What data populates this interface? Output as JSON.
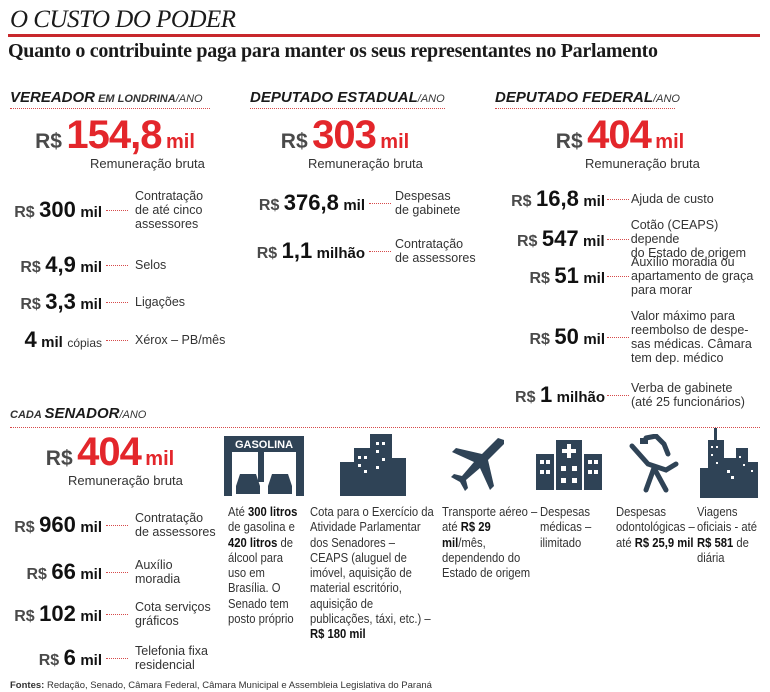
{
  "header": {
    "title": "O CUSTO DO PODER",
    "subtitle": "Quanto o contribuinte paga para manter os seus representantes no Parlamento"
  },
  "colors": {
    "accent": "#e3262b",
    "rule": "#c8282c",
    "icon": "#2f4356"
  },
  "vereador": {
    "head_main": "VEREADOR",
    "head_sub": " EM LONDRINA",
    "head_per": "/ANO",
    "salary": {
      "currency": "R$",
      "number": "154,8",
      "unit": "mil",
      "label": "Remuneração bruta"
    },
    "items": [
      {
        "currency": "R$",
        "number": "300",
        "unit": "mil",
        "desc": "Contratação\nde até cinco\nassessores"
      },
      {
        "currency": "R$",
        "number": "4,9",
        "unit": "mil",
        "desc": "Selos"
      },
      {
        "currency": "R$",
        "number": "3,3",
        "unit": "mil",
        "desc": "Ligações"
      },
      {
        "number": "4",
        "unit": "mil",
        "suffix": "cópias",
        "desc": "Xérox – PB/mês"
      }
    ]
  },
  "estadual": {
    "head_main": "DEPUTADO ESTADUAL",
    "head_per": "/ANO",
    "salary": {
      "currency": "R$",
      "number": "303",
      "unit": "mil",
      "label": "Remuneração bruta"
    },
    "items": [
      {
        "currency": "R$",
        "number": "376,8",
        "unit": "mil",
        "desc": "Despesas\nde gabinete"
      },
      {
        "currency": "R$",
        "number": "1,1",
        "unit": "milhão",
        "desc": "Contratação\nde assessores"
      }
    ]
  },
  "federal": {
    "head_main": "DEPUTADO FEDERAL",
    "head_per": "/ANO",
    "salary": {
      "currency": "R$",
      "number": "404",
      "unit": "mil",
      "label": "Remuneração bruta"
    },
    "items": [
      {
        "currency": "R$",
        "number": "16,8",
        "unit": "mil",
        "desc": "Ajuda de custo"
      },
      {
        "currency": "R$",
        "number": "547",
        "unit": "mil",
        "desc": "Cotão (CEAPS) depende\ndo Estado de origem"
      },
      {
        "currency": "R$",
        "number": "51",
        "unit": "mil",
        "desc": "Auxílio moradia ou\napartamento de graça\npara morar"
      },
      {
        "currency": "R$",
        "number": "50",
        "unit": "mil",
        "desc": "Valor máximo para\nreembolso de despe-\nsas médicas. Câmara\ntem dep. médico"
      },
      {
        "currency": "R$",
        "number": "1",
        "unit": "milhão",
        "desc": "Verba de gabinete\n(até 25 funcionários)"
      }
    ]
  },
  "senador": {
    "head_pre": "CADA ",
    "head_main": "SENADOR",
    "head_per": "/ANO",
    "salary": {
      "currency": "R$",
      "number": "404",
      "unit": "mil",
      "label": "Remuneração bruta"
    },
    "items": [
      {
        "currency": "R$",
        "number": "960",
        "unit": "mil",
        "desc": "Contratação\nde assessores"
      },
      {
        "currency": "R$",
        "number": "66",
        "unit": "mil",
        "desc": "Auxílio\nmoradia"
      },
      {
        "currency": "R$",
        "number": "102",
        "unit": "mil",
        "desc": "Cota serviços\ngráficos"
      },
      {
        "currency": "R$",
        "number": "6",
        "unit": "mil",
        "desc": "Telefonia fixa\nresidencial"
      }
    ],
    "benefits": [
      {
        "icon": "gas-station-icon",
        "sign": "GASOLINA",
        "parts": [
          "Até ",
          "300 litros",
          " de gasolina e ",
          "420 litros",
          " de álcool para uso em Brasília. O Senado tem posto próprio"
        ]
      },
      {
        "icon": "office-buildings-icon",
        "parts": [
          "Cota para o Exercício da Atividade Parlamentar dos Senadores – CEAPS (aluguel de imóvel, aquisição de material escritório, aquisição de publicações, táxi, etc.) – ",
          "R$ 180 mil"
        ]
      },
      {
        "icon": "airplane-icon",
        "parts": [
          "Transporte aéreo – até ",
          "R$ 29 mil",
          "/mês, dependendo do Estado de origem"
        ]
      },
      {
        "icon": "hospital-icon",
        "parts": [
          "Despesas médicas – ilimitado"
        ]
      },
      {
        "icon": "dentist-chair-icon",
        "parts": [
          "Despesas odontológicas – até ",
          "R$ 25,9 mil"
        ]
      },
      {
        "icon": "city-skyline-icon",
        "parts": [
          "Viagens oficiais - até ",
          "R$ 581",
          " de diária"
        ]
      }
    ]
  },
  "footer": {
    "label": "Fontes:",
    "text": " Redação, Senado, Câmara Federal, Câmara Municipal e Assembleia Legislativa do Paraná"
  }
}
